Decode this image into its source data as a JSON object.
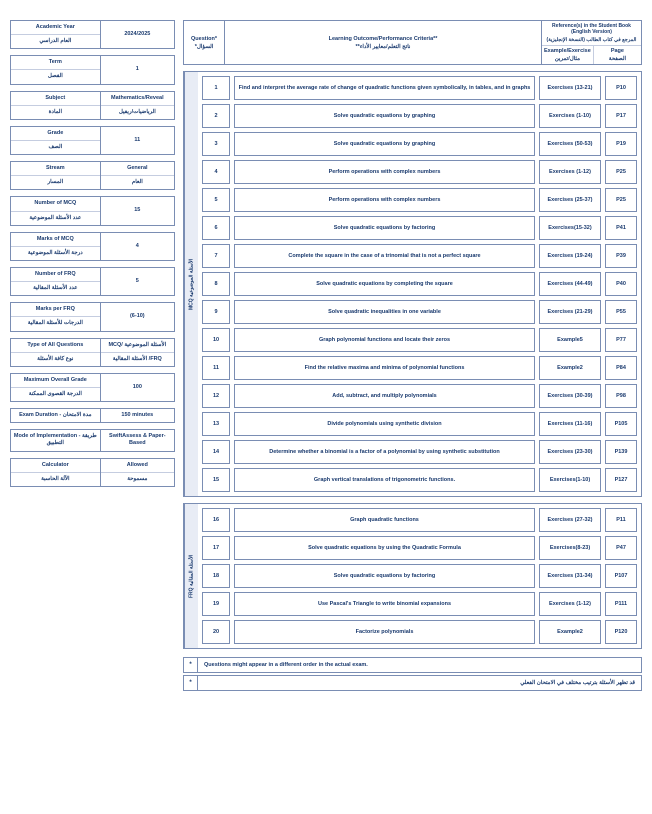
{
  "sidebar": [
    {
      "label_en": "Academic Year",
      "label_ar": "العام الدراسي",
      "value": "2024/2025"
    },
    {
      "label_en": "Term",
      "label_ar": "الفصل",
      "value": "1"
    },
    {
      "label_en": "Subject",
      "label_ar": "المادة",
      "value_en": "Mathematics/Reveal",
      "value_ar": "الرياضيات/ريفيل"
    },
    {
      "label_en": "Grade",
      "label_ar": "الصف",
      "value": "11"
    },
    {
      "label_en": "Stream",
      "label_ar": "المسار",
      "value_en": "General",
      "value_ar": "العام"
    },
    {
      "label_en": "Number of MCQ",
      "label_ar": "عدد الأسئلة الموضوعية",
      "value": "15"
    },
    {
      "label_en": "Marks of MCQ",
      "label_ar": "درجة الأسئلة الموضوعية",
      "value": "4"
    },
    {
      "label_en": "Number of FRQ",
      "label_ar": "عدد الأسئلة المقالية",
      "value": "5"
    },
    {
      "label_en": "Marks per FRQ",
      "label_ar": "الدرجات للأسئلة المقالية",
      "value": "(6-10)"
    },
    {
      "label_en": "Type of All Questions",
      "label_ar": "نوع كافة الأسئلة",
      "value_en": "MCQ/ الأسئلة الموضوعية",
      "value_ar": " FRQ/ الأسئلة المقالية"
    },
    {
      "label_en": "Maximum Overall Grade",
      "label_ar": "الدرجة القصوى الممكنة",
      "value": "100"
    },
    {
      "label_en": "Exam Duration - مدة الامتحان",
      "label_ar": "",
      "value": "150 minutes"
    },
    {
      "label_en": "Mode of Implementation - طريقة التطبيق",
      "label_ar": "",
      "value": "SwiftAssess & Paper-Based"
    },
    {
      "label_en": "Calculator",
      "label_ar": "الآلة الحاسبة",
      "value_en": "Allowed",
      "value_ar": "مسموحة"
    }
  ],
  "header": {
    "question_en": "Question*",
    "question_ar": "السؤال*",
    "lo_en": "Learning Outcome/Performance Criteria**",
    "lo_ar": "ناتج التعلم/معايير الأداء**",
    "ref_title_en": "Reference(s) in the Student Book (English Version)",
    "ref_title_ar": "المرجع في كتاب الطالب (النسخة الإنجليزية)",
    "example_en": "Example/Exercise",
    "example_ar": "مثال/تمرين",
    "page_en": "Page",
    "page_ar": "الصفحة"
  },
  "sections": [
    {
      "label": "MCQ   الأسئلة الموضوعية",
      "rows": [
        {
          "n": "1",
          "lo": "Find and interpret the average rate of change of quadratic functions given symbolically, in tables, and in graphs",
          "ex": "Exercises (13-21)",
          "pg": "P10"
        },
        {
          "n": "2",
          "lo": "Solve quadratic equations by graphing",
          "ex": "Exercises (1-10)",
          "pg": "P17"
        },
        {
          "n": "3",
          "lo": "Solve quadratic equations by graphing",
          "ex": "Exercises (50-53)",
          "pg": "P19"
        },
        {
          "n": "4",
          "lo": "Perform operations with complex numbers",
          "ex": "Exercises (1-12)",
          "pg": "P25"
        },
        {
          "n": "5",
          "lo": "Perform operations with complex numbers",
          "ex": "Exercises (25-37)",
          "pg": "P25"
        },
        {
          "n": "6",
          "lo": "Solve quadratic equations by factoring",
          "ex": "Exercises(15-32)",
          "pg": "P41"
        },
        {
          "n": "7",
          "lo": "Complete the square in the case of a trinomial that is not a perfect square",
          "ex": "Exercises  (19-24)",
          "pg": "P39"
        },
        {
          "n": "8",
          "lo": "Solve quadratic equations by completing the square",
          "ex": "Exercises (44-49)",
          "pg": "P40"
        },
        {
          "n": "9",
          "lo": "Solve quadratic inequalities in one variable",
          "ex": "Exercises (21-29)",
          "pg": "P55"
        },
        {
          "n": "10",
          "lo": "Graph polynomial functions and locate their zeros",
          "ex": "Example5",
          "pg": "P77"
        },
        {
          "n": "11",
          "lo": "Find the relative maxima and minima of polynomial functions",
          "ex": "Example2",
          "pg": "P84"
        },
        {
          "n": "12",
          "lo": "Add, subtract, and multiply polynomials",
          "ex": "Exercises (30-39)",
          "pg": "P98"
        },
        {
          "n": "13",
          "lo": "Divide polynomials using synthetic division",
          "ex": "Exercises (11-16)",
          "pg": "P105"
        },
        {
          "n": "14",
          "lo": "Determine whether a binomial is a factor of a polynomial by using synthetic substitution",
          "ex": "Exercises (23-30)",
          "pg": "P139"
        },
        {
          "n": "15",
          "lo": "Graph vertical translations of trigonometric functions.",
          "ex": "Exercises(1-10)",
          "pg": "P127"
        }
      ]
    },
    {
      "label": "FRQ   الأسئلة المقالية",
      "rows": [
        {
          "n": "16",
          "lo": "Graph quadratic functions",
          "ex": "Exercises (27-32)",
          "pg": "P11"
        },
        {
          "n": "17",
          "lo": "Solve quadratic equations by using the Quadratic Formula",
          "ex": "Exercises(8-23)",
          "pg": "P47"
        },
        {
          "n": "18",
          "lo": "Solve quadratic equations by factoring",
          "ex": "Exercises (31-34)",
          "pg": "P107"
        },
        {
          "n": "19",
          "lo": "Use Pascal's Triangle to write binomial expansions",
          "ex": "Exercises (1-12)",
          "pg": "P111"
        },
        {
          "n": "20",
          "lo": "Factorize polynomials",
          "ex": "Example2",
          "pg": "P120"
        }
      ]
    }
  ],
  "footers": [
    {
      "star": "*",
      "txt": "Questions might appear in a different order in the actual exam.",
      "ar": false
    },
    {
      "star": "*",
      "txt": "قد تظهر الأسئلة بترتيب مختلف في الامتحان الفعلي",
      "ar": true
    }
  ]
}
